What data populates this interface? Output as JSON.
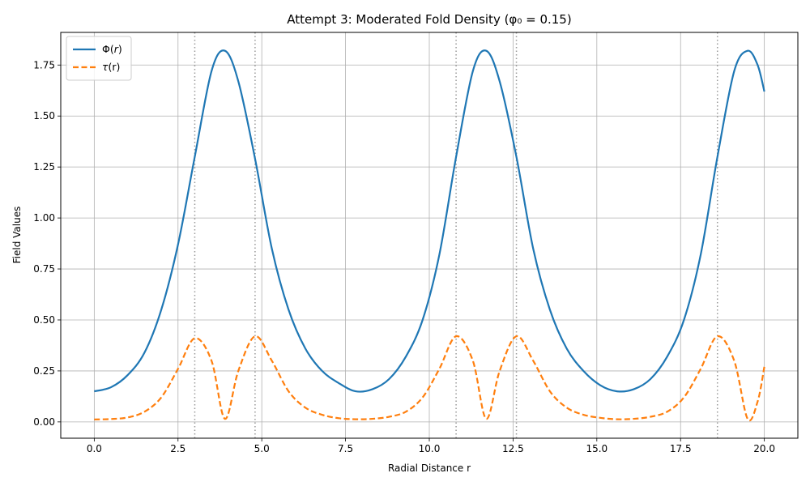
{
  "chart_data": {
    "type": "line",
    "title": "Attempt 3: Moderated Fold Density (φ₀ = 0.15)",
    "xlabel": "Radial Distance r",
    "ylabel": "Field Values",
    "xlim": [
      -1.0,
      21.0
    ],
    "ylim": [
      -0.08,
      1.91
    ],
    "xticks": [
      0.0,
      2.5,
      5.0,
      7.5,
      10.0,
      12.5,
      15.0,
      17.5,
      20.0
    ],
    "xtick_labels": [
      "0.0",
      "2.5",
      "5.0",
      "7.5",
      "10.0",
      "12.5",
      "15.0",
      "17.5",
      "20.0"
    ],
    "yticks": [
      0.0,
      0.25,
      0.5,
      0.75,
      1.0,
      1.25,
      1.5,
      1.75
    ],
    "ytick_labels": [
      "0.00",
      "0.25",
      "0.50",
      "0.75",
      "1.00",
      "1.25",
      "1.50",
      "1.75"
    ],
    "grid": true,
    "legend": "upper-left",
    "vertical_markers": [
      3.0,
      4.8,
      10.8,
      12.6,
      18.6
    ],
    "x": [
      0.0,
      0.5,
      1.0,
      1.5,
      2.0,
      2.5,
      3.0,
      3.5,
      3.9,
      4.3,
      4.8,
      5.3,
      5.8,
      6.3,
      6.8,
      7.3,
      7.8,
      8.3,
      8.8,
      9.3,
      9.8,
      10.3,
      10.8,
      11.3,
      11.7,
      12.1,
      12.6,
      13.1,
      13.6,
      14.1,
      14.6,
      15.1,
      15.6,
      16.1,
      16.6,
      17.1,
      17.6,
      18.1,
      18.6,
      19.1,
      19.5,
      19.8,
      20.0
    ],
    "series": [
      {
        "name": "Φ(r)",
        "label_base": "Φ(",
        "label_italic": "r",
        "label_tail": ")",
        "color": "#1f77b4",
        "dash": "solid",
        "values": [
          0.15,
          0.17,
          0.23,
          0.34,
          0.55,
          0.87,
          1.3,
          1.72,
          1.82,
          1.67,
          1.29,
          0.85,
          0.55,
          0.36,
          0.25,
          0.19,
          0.15,
          0.16,
          0.21,
          0.32,
          0.5,
          0.82,
          1.3,
          1.72,
          1.82,
          1.67,
          1.3,
          0.85,
          0.55,
          0.36,
          0.25,
          0.18,
          0.15,
          0.16,
          0.21,
          0.32,
          0.5,
          0.82,
          1.3,
          1.72,
          1.82,
          1.75,
          1.62
        ]
      },
      {
        "name": "τ(r)",
        "label_base": "",
        "label_italic": "τ",
        "label_tail": "(r)",
        "color": "#ff7f0e",
        "dash": "dashed",
        "values": [
          0.012,
          0.014,
          0.022,
          0.05,
          0.12,
          0.26,
          0.41,
          0.3,
          0.015,
          0.25,
          0.42,
          0.3,
          0.15,
          0.07,
          0.035,
          0.018,
          0.013,
          0.015,
          0.025,
          0.05,
          0.12,
          0.26,
          0.42,
          0.3,
          0.015,
          0.25,
          0.42,
          0.3,
          0.15,
          0.07,
          0.035,
          0.02,
          0.013,
          0.015,
          0.025,
          0.05,
          0.12,
          0.26,
          0.42,
          0.3,
          0.015,
          0.1,
          0.27
        ]
      }
    ]
  }
}
